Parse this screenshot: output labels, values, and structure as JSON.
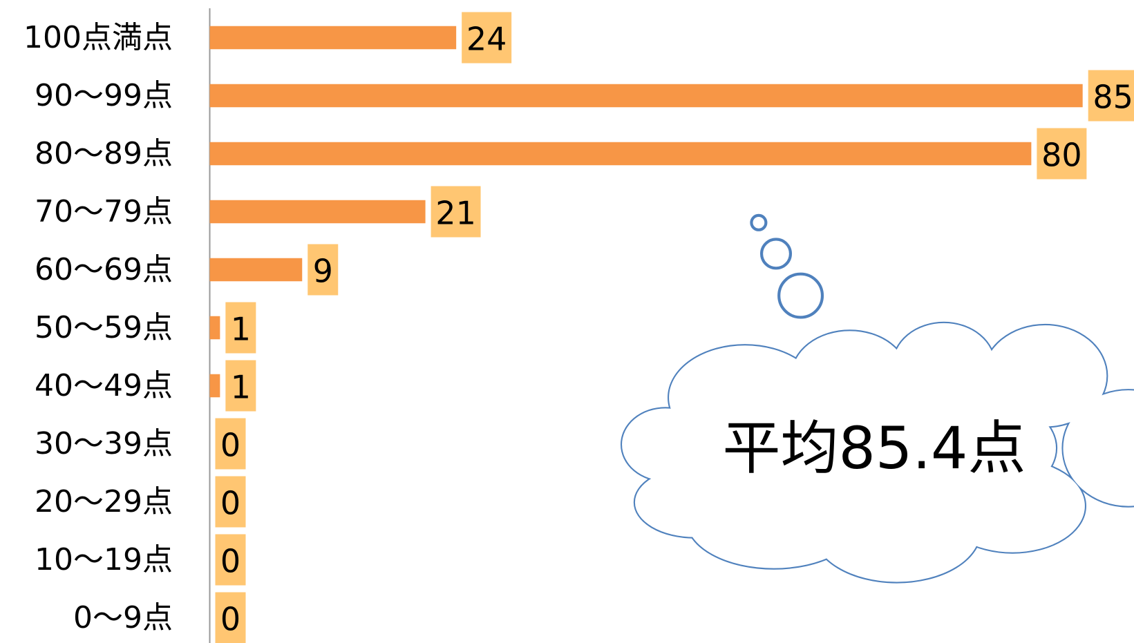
{
  "chart_data": {
    "type": "barh",
    "categories": [
      "100点満点",
      "90〜99点",
      "80〜89点",
      "70〜79点",
      "60〜69点",
      "50〜59点",
      "40〜49点",
      "30〜39点",
      "20〜29点",
      "10〜19点",
      "0〜9点"
    ],
    "values": [
      24,
      85,
      80,
      21,
      9,
      1,
      1,
      0,
      0,
      0,
      0
    ],
    "color": "#f79646",
    "label_color": "#ffc672",
    "xlim": [
      0,
      90
    ],
    "annotation": "平均85.4点"
  }
}
